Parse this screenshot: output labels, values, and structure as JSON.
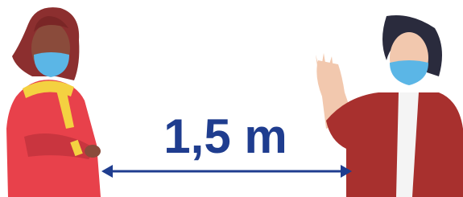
{
  "distance_label": "1,5 m"
}
